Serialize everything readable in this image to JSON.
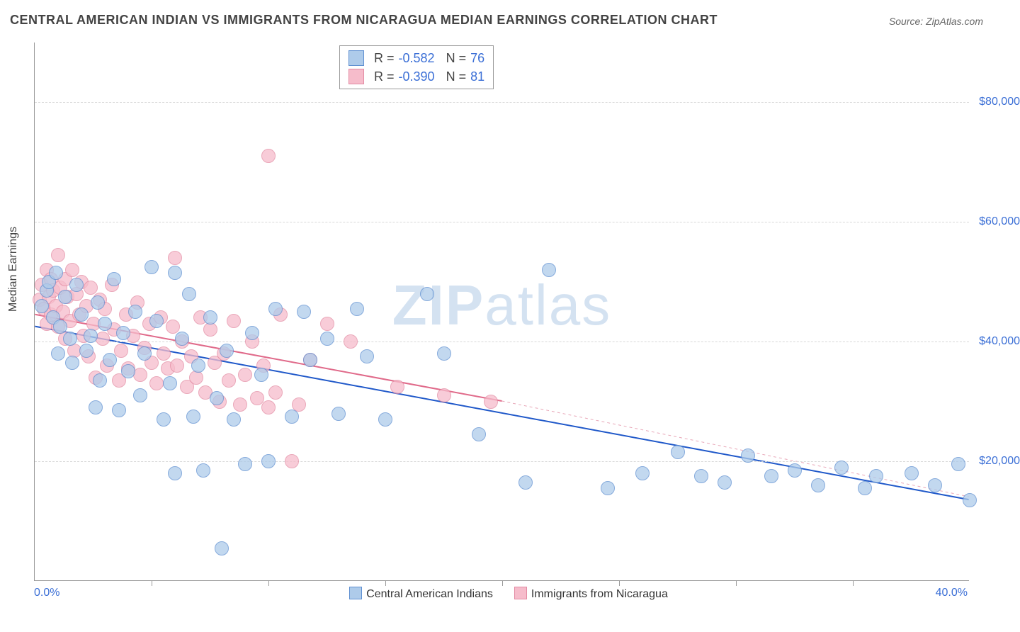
{
  "title": "CENTRAL AMERICAN INDIAN VS IMMIGRANTS FROM NICARAGUA MEDIAN EARNINGS CORRELATION CHART",
  "source_label": "Source: ZipAtlas.com",
  "watermark": {
    "bold": "ZIP",
    "light": "atlas"
  },
  "y_axis": {
    "label": "Median Earnings",
    "min": 0,
    "max": 90000,
    "ticks": [
      20000,
      40000,
      60000,
      80000
    ],
    "tick_labels": [
      "$20,000",
      "$40,000",
      "$60,000",
      "$80,000"
    ],
    "tick_color": "#3b6fd6",
    "grid_color": "#d8d8d8"
  },
  "x_axis": {
    "min": 0,
    "max": 40,
    "left_label": "0.0%",
    "right_label": "40.0%",
    "tick_positions": [
      5,
      10,
      15,
      20,
      25,
      30,
      35
    ],
    "label_color": "#3b6fd6"
  },
  "series": {
    "blue": {
      "label": "Central American Indians",
      "fill": "#aecbea",
      "stroke": "#5e8fd1",
      "radius": 10,
      "opacity": 0.75,
      "stroke_width": 1
    },
    "pink": {
      "label": "Immigrants from Nicaragua",
      "fill": "#f6bccb",
      "stroke": "#e38ba3",
      "radius": 10,
      "opacity": 0.75,
      "stroke_width": 1
    }
  },
  "stats_legend": [
    {
      "series": "blue",
      "R": "-0.582",
      "N": "76"
    },
    {
      "series": "pink",
      "R": "-0.390",
      "N": "81"
    }
  ],
  "trend_lines": {
    "blue": {
      "x1": 0,
      "y1": 42500,
      "x2": 40,
      "y2": 13500,
      "color": "#1f58c9",
      "width": 2,
      "dash": ""
    },
    "pink": {
      "x1": 0,
      "y1": 44500,
      "x2": 20,
      "y2": 30000,
      "color": "#e06a8a",
      "width": 2,
      "dash": ""
    },
    "pink_ext": {
      "x1": 20,
      "y1": 30000,
      "x2": 40,
      "y2": 14000,
      "color": "#e8a7b8",
      "width": 1,
      "dash": "4 4"
    }
  },
  "points_blue": [
    [
      0.3,
      46000
    ],
    [
      0.5,
      48500
    ],
    [
      0.6,
      50000
    ],
    [
      0.8,
      44000
    ],
    [
      0.9,
      51500
    ],
    [
      1.0,
      38000
    ],
    [
      1.1,
      42500
    ],
    [
      1.3,
      47500
    ],
    [
      1.5,
      40500
    ],
    [
      1.6,
      36500
    ],
    [
      1.8,
      49500
    ],
    [
      2.0,
      44500
    ],
    [
      2.2,
      38500
    ],
    [
      2.4,
      41000
    ],
    [
      2.6,
      29000
    ],
    [
      2.7,
      46500
    ],
    [
      2.8,
      33500
    ],
    [
      3.0,
      43000
    ],
    [
      3.2,
      37000
    ],
    [
      3.4,
      50500
    ],
    [
      3.6,
      28500
    ],
    [
      3.8,
      41500
    ],
    [
      4.0,
      35000
    ],
    [
      4.3,
      45000
    ],
    [
      4.5,
      31000
    ],
    [
      4.7,
      38000
    ],
    [
      5.0,
      52500
    ],
    [
      5.2,
      43500
    ],
    [
      5.5,
      27000
    ],
    [
      5.8,
      33000
    ],
    [
      6.0,
      18000
    ],
    [
      6.3,
      40500
    ],
    [
      6.6,
      48000
    ],
    [
      6.8,
      27500
    ],
    [
      7.0,
      36000
    ],
    [
      7.2,
      18500
    ],
    [
      7.5,
      44000
    ],
    [
      7.8,
      30500
    ],
    [
      8.0,
      5500
    ],
    [
      8.2,
      38500
    ],
    [
      8.5,
      27000
    ],
    [
      9.0,
      19500
    ],
    [
      9.3,
      41500
    ],
    [
      9.7,
      34500
    ],
    [
      10.0,
      20000
    ],
    [
      10.3,
      45500
    ],
    [
      11.0,
      27500
    ],
    [
      11.5,
      45000
    ],
    [
      11.8,
      37000
    ],
    [
      12.5,
      40500
    ],
    [
      13.0,
      28000
    ],
    [
      13.8,
      45500
    ],
    [
      14.2,
      37500
    ],
    [
      15.0,
      27000
    ],
    [
      16.8,
      48000
    ],
    [
      17.5,
      38000
    ],
    [
      19.0,
      24500
    ],
    [
      21.0,
      16500
    ],
    [
      22.0,
      52000
    ],
    [
      24.5,
      15500
    ],
    [
      26.0,
      18000
    ],
    [
      27.5,
      21500
    ],
    [
      28.5,
      17500
    ],
    [
      29.5,
      16500
    ],
    [
      30.5,
      21000
    ],
    [
      31.5,
      17500
    ],
    [
      32.5,
      18500
    ],
    [
      33.5,
      16000
    ],
    [
      34.5,
      19000
    ],
    [
      35.5,
      15500
    ],
    [
      36.0,
      17500
    ],
    [
      37.5,
      18000
    ],
    [
      38.5,
      16000
    ],
    [
      39.5,
      19500
    ],
    [
      40.0,
      13500
    ],
    [
      6.0,
      51500
    ]
  ],
  "points_pink": [
    [
      0.2,
      47000
    ],
    [
      0.3,
      49500
    ],
    [
      0.4,
      45500
    ],
    [
      0.5,
      52000
    ],
    [
      0.5,
      43000
    ],
    [
      0.6,
      47500
    ],
    [
      0.7,
      50500
    ],
    [
      0.7,
      44500
    ],
    [
      0.8,
      48500
    ],
    [
      0.9,
      46000
    ],
    [
      1.0,
      54500
    ],
    [
      1.0,
      42500
    ],
    [
      1.1,
      49000
    ],
    [
      1.2,
      45000
    ],
    [
      1.3,
      50500
    ],
    [
      1.3,
      40500
    ],
    [
      1.4,
      47500
    ],
    [
      1.5,
      43500
    ],
    [
      1.6,
      52000
    ],
    [
      1.7,
      38500
    ],
    [
      1.8,
      48000
    ],
    [
      1.9,
      44500
    ],
    [
      2.0,
      50000
    ],
    [
      2.1,
      41000
    ],
    [
      2.2,
      46000
    ],
    [
      2.3,
      37500
    ],
    [
      2.4,
      49000
    ],
    [
      2.5,
      43000
    ],
    [
      2.6,
      34000
    ],
    [
      2.8,
      47000
    ],
    [
      2.9,
      40500
    ],
    [
      3.0,
      45500
    ],
    [
      3.1,
      36000
    ],
    [
      3.3,
      49500
    ],
    [
      3.4,
      42000
    ],
    [
      3.6,
      33500
    ],
    [
      3.7,
      38500
    ],
    [
      3.9,
      44500
    ],
    [
      4.0,
      35500
    ],
    [
      4.2,
      41000
    ],
    [
      4.4,
      46500
    ],
    [
      4.5,
      34500
    ],
    [
      4.7,
      39000
    ],
    [
      4.9,
      43000
    ],
    [
      5.0,
      36500
    ],
    [
      5.2,
      33000
    ],
    [
      5.4,
      44000
    ],
    [
      5.5,
      38000
    ],
    [
      5.7,
      35500
    ],
    [
      5.9,
      42500
    ],
    [
      6.0,
      54000
    ],
    [
      6.1,
      36000
    ],
    [
      6.3,
      40000
    ],
    [
      6.5,
      32500
    ],
    [
      6.7,
      37500
    ],
    [
      6.9,
      34000
    ],
    [
      7.1,
      44000
    ],
    [
      7.3,
      31500
    ],
    [
      7.5,
      42000
    ],
    [
      7.7,
      36500
    ],
    [
      7.9,
      30000
    ],
    [
      8.1,
      38000
    ],
    [
      8.3,
      33500
    ],
    [
      8.5,
      43500
    ],
    [
      8.8,
      29500
    ],
    [
      9.0,
      34500
    ],
    [
      9.3,
      40000
    ],
    [
      9.5,
      30500
    ],
    [
      9.8,
      36000
    ],
    [
      10.0,
      29000
    ],
    [
      10.3,
      31500
    ],
    [
      10.5,
      44500
    ],
    [
      11.0,
      20000
    ],
    [
      11.3,
      29500
    ],
    [
      11.8,
      37000
    ],
    [
      12.5,
      43000
    ],
    [
      13.5,
      40000
    ],
    [
      15.5,
      32500
    ],
    [
      17.5,
      31000
    ],
    [
      19.5,
      30000
    ],
    [
      10.0,
      71000
    ]
  ]
}
